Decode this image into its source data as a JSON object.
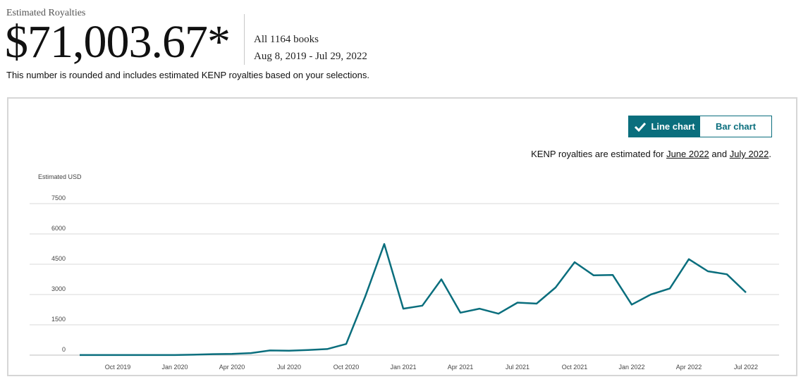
{
  "header": {
    "label": "Estimated Royalties",
    "amount": "$71,003.67*",
    "scope": "All 1164 books",
    "date_range": "Aug 8, 2019 - Jul 29, 2022",
    "disclaimer": "This number is rounded and includes estimated KENP royalties based on your selections."
  },
  "toggle": {
    "line_label": "Line chart",
    "bar_label": "Bar chart",
    "selected": "line"
  },
  "kenp_note": {
    "prefix": "KENP royalties are estimated for ",
    "link1": "June 2022",
    "middle": " and ",
    "link2": "July 2022",
    "suffix": "."
  },
  "colors": {
    "line": "#0a6e7d",
    "accent": "#0a6e7d",
    "grid": "#d9d9d9"
  },
  "chart_data": {
    "type": "line",
    "ylabel": "Estimated USD",
    "ylim": [
      0,
      7500
    ],
    "yticks": [
      0,
      1500,
      3000,
      4500,
      6000,
      7500
    ],
    "grid": true,
    "x_tick_labels": [
      "Oct 2019",
      "Jan 2020",
      "Apr 2020",
      "Jul 2020",
      "Oct 2020",
      "Jan 2021",
      "Apr 2021",
      "Jul 2021",
      "Oct 2021",
      "Jan 2022",
      "Apr 2022",
      "Jul 2022"
    ],
    "x": [
      "Aug 2019",
      "Sep 2019",
      "Oct 2019",
      "Nov 2019",
      "Dec 2019",
      "Jan 2020",
      "Feb 2020",
      "Mar 2020",
      "Apr 2020",
      "May 2020",
      "Jun 2020",
      "Jul 2020",
      "Aug 2020",
      "Sep 2020",
      "Oct 2020",
      "Nov 2020",
      "Dec 2020",
      "Jan 2021",
      "Feb 2021",
      "Mar 2021",
      "Apr 2021",
      "May 2021",
      "Jun 2021",
      "Jul 2021",
      "Aug 2021",
      "Sep 2021",
      "Oct 2021",
      "Nov 2021",
      "Dec 2021",
      "Jan 2022",
      "Feb 2022",
      "Mar 2022",
      "Apr 2022",
      "May 2022",
      "Jun 2022",
      "Jul 2022"
    ],
    "series": [
      {
        "values": [
          5,
          5,
          5,
          5,
          5,
          5,
          20,
          50,
          60,
          100,
          230,
          220,
          250,
          300,
          550,
          2900,
          5500,
          2300,
          2450,
          3750,
          2100,
          2300,
          2050,
          2600,
          2550,
          3350,
          4600,
          3950,
          3970,
          2500,
          3000,
          3300,
          4750,
          4150,
          4000,
          3100
        ]
      }
    ]
  }
}
